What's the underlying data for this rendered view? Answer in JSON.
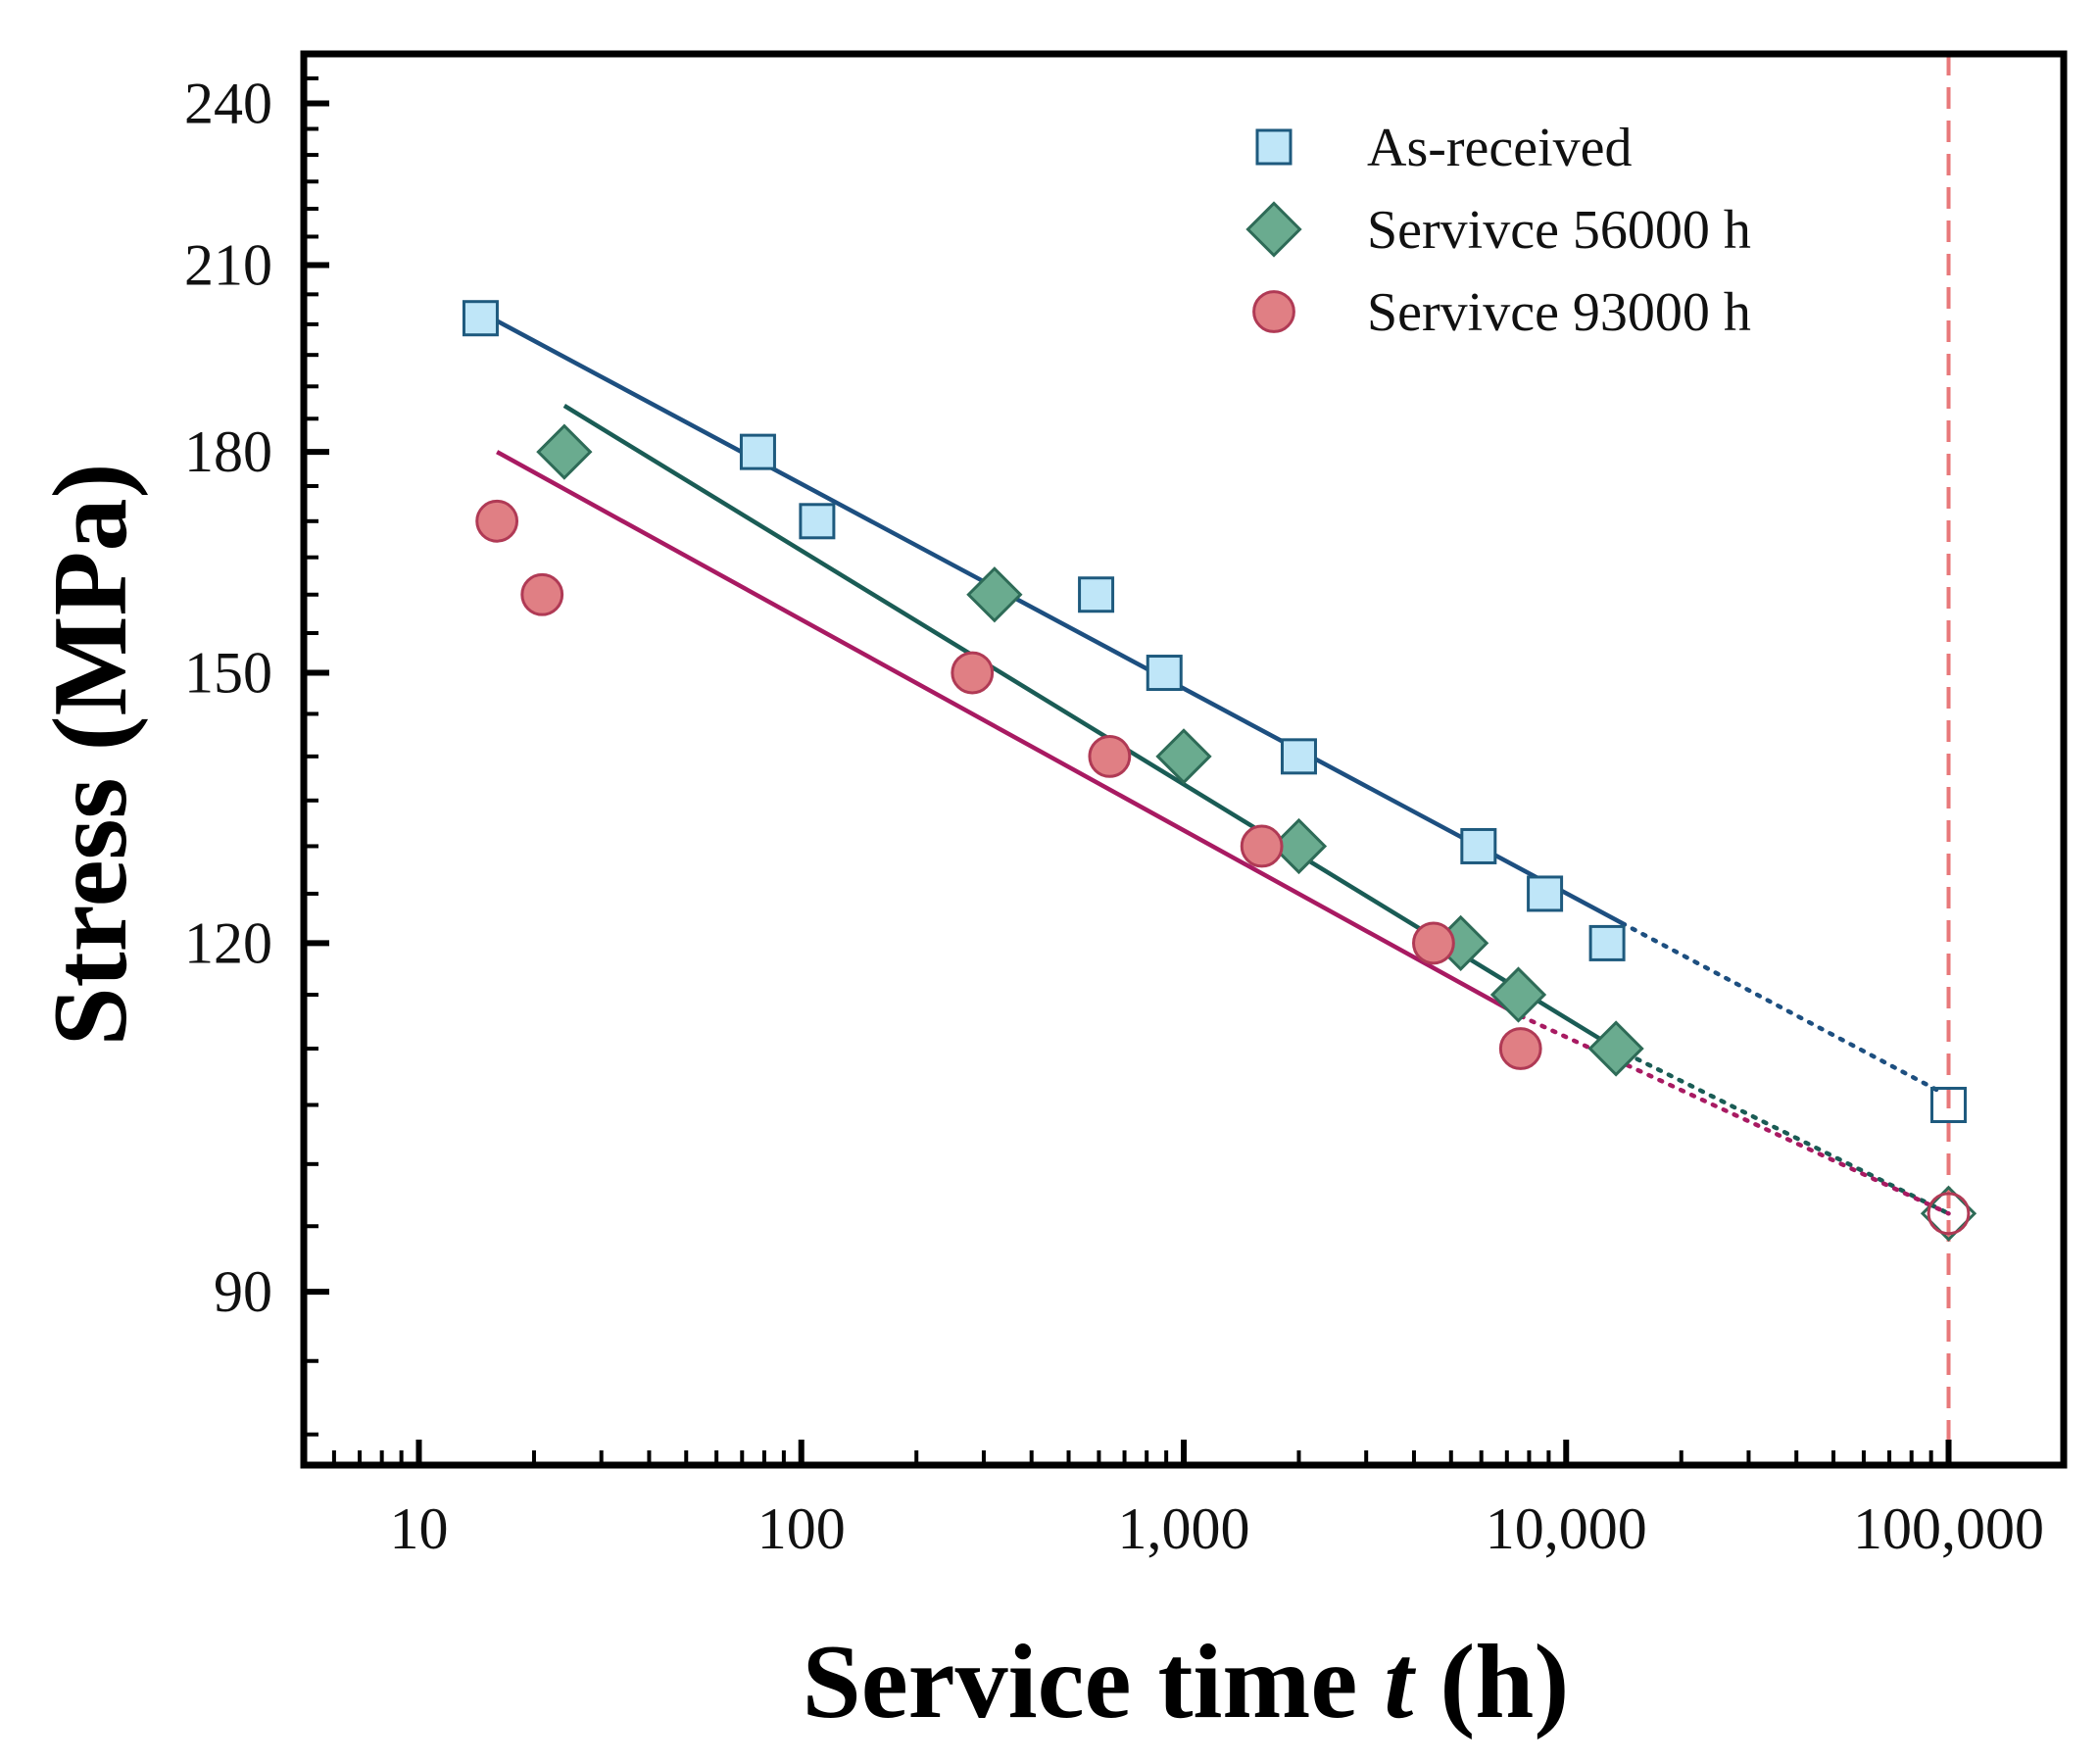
{
  "chart_data": {
    "type": "scatter",
    "xlabel_prefix": "Service time ",
    "xlabel_var": "t",
    "xlabel_suffix": " (h)",
    "ylabel": "Stress (MPa)",
    "x_scale": "log",
    "y_scale": "log",
    "xlim": [
      5,
      200000
    ],
    "ylim": [
      78,
      250
    ],
    "x_ticks": [
      {
        "value": 10,
        "label": "10"
      },
      {
        "value": 100,
        "label": "100"
      },
      {
        "value": 1000,
        "label": "1,000"
      },
      {
        "value": 10000,
        "label": "10,000"
      },
      {
        "value": 100000,
        "label": "100,000"
      }
    ],
    "y_ticks": [
      {
        "value": 90,
        "label": "90"
      },
      {
        "value": 120,
        "label": "120"
      },
      {
        "value": 150,
        "label": "150"
      },
      {
        "value": 180,
        "label": "180"
      },
      {
        "value": 210,
        "label": "210"
      },
      {
        "value": 240,
        "label": "240"
      }
    ],
    "legend_position": "top-right",
    "reference_line": {
      "x": 100000,
      "color": "#e8787a",
      "style": "dashed"
    },
    "series": [
      {
        "name": "As-received",
        "marker": "square",
        "fill": "#bfe6f8",
        "stroke": "#1e5a7e",
        "line_color": "#1d4f80",
        "points": [
          [
            14.5,
            201
          ],
          [
            77,
            180
          ],
          [
            110,
            170
          ],
          [
            590,
            160
          ],
          [
            890,
            150
          ],
          [
            2000,
            140
          ],
          [
            5900,
            130
          ],
          [
            8800,
            125
          ],
          [
            12800,
            120
          ]
        ],
        "fit": {
          "from": [
            14.5,
            202
          ],
          "to": [
            14000,
            122
          ]
        },
        "extrapolation": {
          "from": [
            14000,
            122
          ],
          "to": [
            97000,
            106
          ]
        },
        "predicted": {
          "x": 100000,
          "y": 105
        }
      },
      {
        "name": "Servivce 56000 h",
        "marker": "diamond",
        "fill": "#6aab8f",
        "stroke": "#2e6b57",
        "line_color": "#1a5c55",
        "points": [
          [
            24,
            180
          ],
          [
            320,
            160
          ],
          [
            1000,
            140
          ],
          [
            2000,
            130
          ],
          [
            5300,
            120
          ],
          [
            7500,
            115
          ],
          [
            13500,
            110
          ]
        ],
        "fit": {
          "from": [
            24,
            187
          ],
          "to": [
            13500,
            110
          ]
        },
        "extrapolation": {
          "from": [
            13500,
            110
          ],
          "to": [
            100000,
            96
          ]
        },
        "predicted": {
          "x": 100000,
          "y": 96
        }
      },
      {
        "name": "Servivce 93000 h",
        "marker": "circle",
        "fill": "#e07f84",
        "stroke": "#b03a55",
        "line_color": "#a81a62",
        "points": [
          [
            16,
            170
          ],
          [
            21,
            160
          ],
          [
            280,
            150
          ],
          [
            640,
            140
          ],
          [
            1600,
            130
          ],
          [
            4500,
            120
          ],
          [
            7600,
            110
          ]
        ],
        "fit": {
          "from": [
            16,
            180
          ],
          "to": [
            7600,
            113
          ]
        },
        "extrapolation": {
          "from": [
            7600,
            113
          ],
          "to": [
            100000,
            96
          ]
        },
        "predicted": {
          "x": 100000,
          "y": 96
        }
      }
    ]
  }
}
